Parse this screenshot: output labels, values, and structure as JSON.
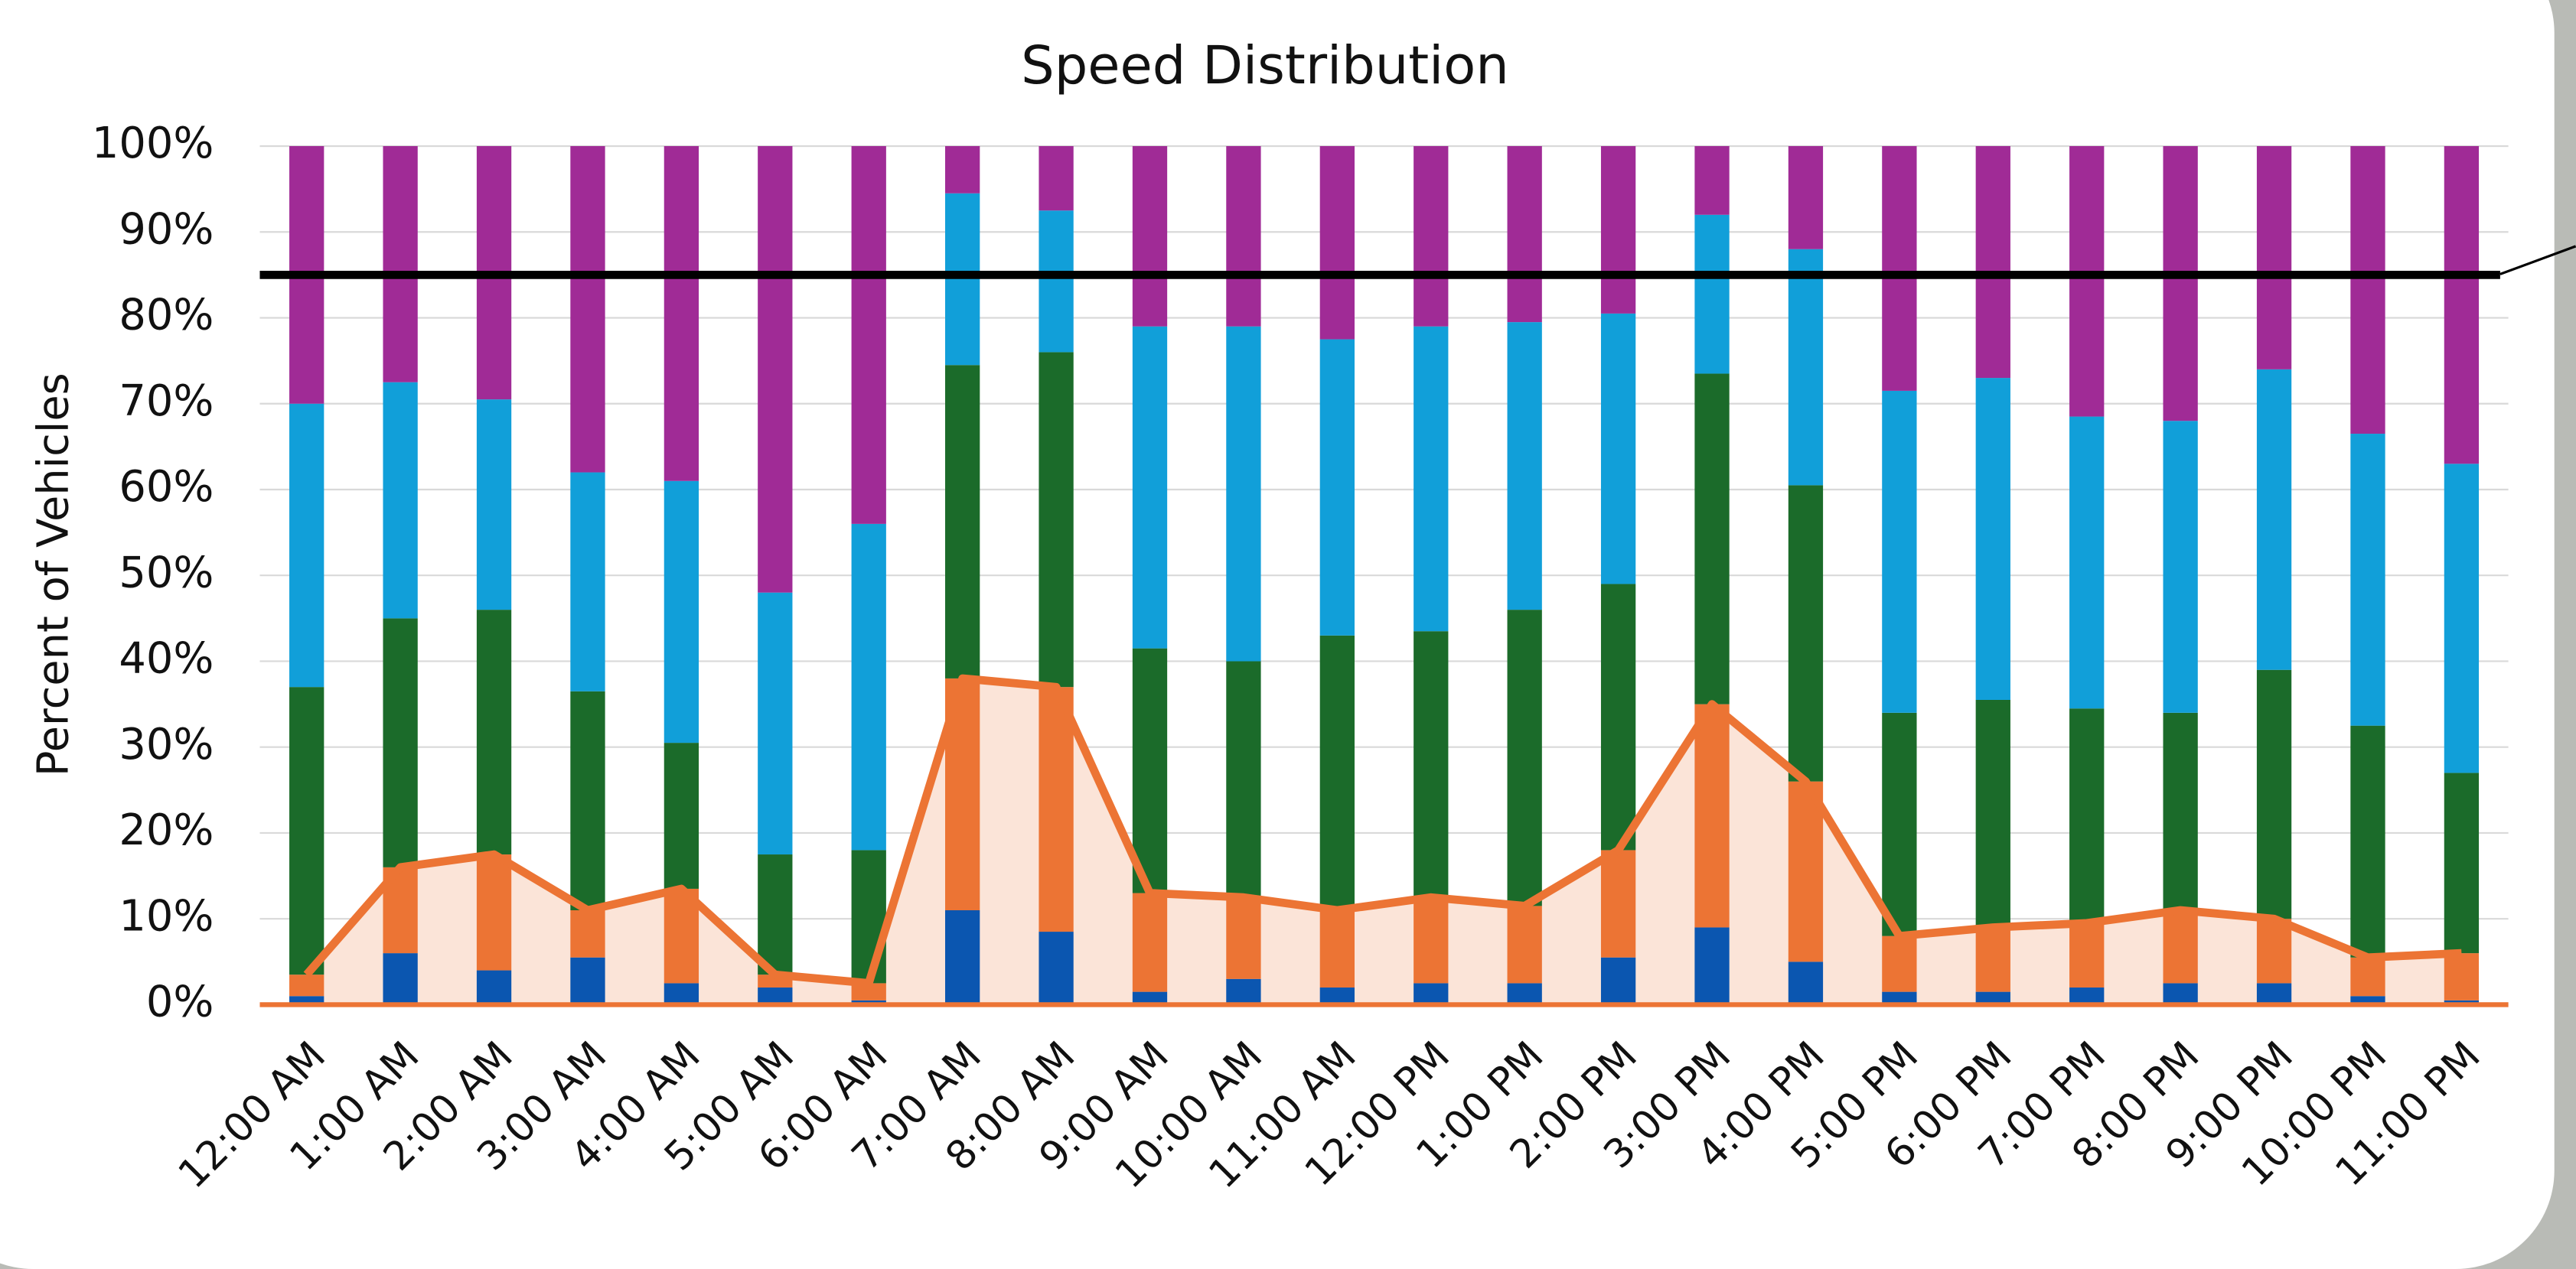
{
  "chart_data": {
    "type": "stacked_bar",
    "title": "Speed Distribution",
    "y_label": "Percent of Vehicles",
    "categories": [
      "12:00 AM",
      "1:00 AM",
      "2:00 AM",
      "3:00 AM",
      "4:00 AM",
      "5:00 AM",
      "6:00 AM",
      "7:00 AM",
      "8:00 AM",
      "9:00 AM",
      "10:00 AM",
      "11:00 AM",
      "12:00 PM",
      "1:00 PM",
      "2:00 PM",
      "3:00 PM",
      "4:00 PM",
      "5:00 PM",
      "6:00 PM",
      "7:00 PM",
      "8:00 PM",
      "9:00 PM",
      "10:00 PM",
      "11:00 PM"
    ],
    "series": [
      {
        "color": "#0b56b0",
        "values": [
          1,
          6,
          4,
          5.5,
          2.5,
          2,
          0.5,
          11,
          8.5,
          1.5,
          3,
          2,
          2.5,
          2.5,
          5.5,
          9,
          5,
          1.5,
          1.5,
          2,
          2.5,
          2.5,
          1,
          0.5
        ]
      },
      {
        "color": "#ec7434",
        "values": [
          2.5,
          10,
          13.5,
          5.5,
          11,
          1.5,
          2,
          27,
          28.5,
          11.5,
          9.5,
          9,
          10,
          9,
          12.5,
          26,
          21,
          6.5,
          7.5,
          7.5,
          8.5,
          7.5,
          4.5,
          5.5
        ]
      },
      {
        "color": "#1b6b2a",
        "values": [
          33.5,
          29,
          28.5,
          25.5,
          17,
          14,
          15.5,
          36.5,
          39,
          28.5,
          27.5,
          32,
          31,
          34.5,
          31,
          38.5,
          34.5,
          26,
          26.5,
          25,
          23,
          29,
          27,
          21
        ]
      },
      {
        "color": "#119fd9",
        "values": [
          33,
          27.5,
          24.5,
          25.5,
          30.5,
          30.5,
          38,
          20,
          16.5,
          37.5,
          39,
          34.5,
          35.5,
          33.5,
          31.5,
          18.5,
          27.5,
          37.5,
          37.5,
          34,
          34,
          35,
          34,
          36
        ]
      },
      {
        "color": "#a02b96",
        "values": [
          30,
          27.5,
          29.5,
          38,
          39,
          52,
          44,
          5.5,
          7.5,
          21,
          21,
          22.5,
          21,
          20.5,
          19.5,
          8,
          12,
          28.5,
          27,
          31.5,
          32,
          26,
          33.5,
          37
        ]
      }
    ],
    "cumulative_area_series": [
      0,
      1
    ],
    "area_color": "#fbe4d8",
    "reference_line": 85,
    "reference_color": "#000000",
    "ylim": [
      0,
      100
    ],
    "yticks": [
      {
        "value": 0,
        "label": "0%"
      },
      {
        "value": 10,
        "label": "10%"
      },
      {
        "value": 20,
        "label": "20%"
      },
      {
        "value": 30,
        "label": "30%"
      },
      {
        "value": 40,
        "label": "40%"
      },
      {
        "value": 50,
        "label": "50%"
      },
      {
        "value": 60,
        "label": "60%"
      },
      {
        "value": 70,
        "label": "70%"
      },
      {
        "value": 80,
        "label": "80%"
      },
      {
        "value": 90,
        "label": "90%"
      },
      {
        "value": 100,
        "label": "100%"
      }
    ],
    "grid": true
  }
}
